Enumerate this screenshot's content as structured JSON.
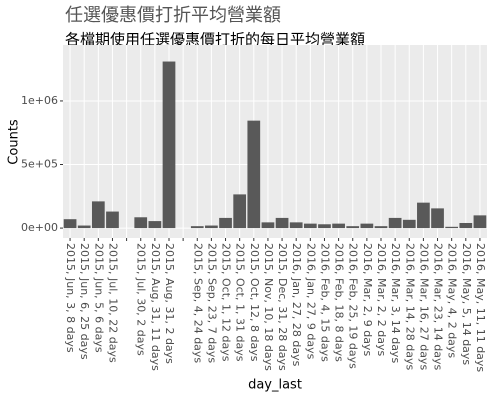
{
  "chart_data": {
    "type": "bar",
    "title": "任選優惠價打折平均營業額",
    "subtitle": "各檔期使用任選優惠價打折的每日平均營業額",
    "x_label": "day_last",
    "y_label": "Counts",
    "categories": [
      "2015, Jun, 3, 8 days",
      "2015, Jun, 6, 25 days",
      "2015, Jun, 5, 6 days",
      "2015, Jul, 10, 22 days",
      null,
      "2015, Jul, 30, 2 days",
      "2015, Aug, 31, 11 days",
      "2015, Aug, 31, 2 days",
      null,
      "2015, Sep, 4, 24 days",
      "2015, Sep, 23, 7 days",
      "2015, Oct, 1, 12 days",
      "2015, Oct, 1, 31 days",
      "2015, Oct, 12, 8 days",
      "2015, Nov, 10, 18 days",
      "2015, Dec, 31, 28 days",
      "2016, Jan, 27, 28 days",
      "2016, Jan, 27, 9 days",
      "2016, Feb, 4, 15 days",
      "2016, Feb, 18, 8 days",
      "2016, Feb, 25, 19 days",
      "2016, Mar, 2, 9 days",
      "2016, Mar, 2, 2 days",
      "2016, Mar, 3, 14 days",
      "2016, Mar, 14, 28 days",
      "2016, Mar, 16, 27 days",
      "2016, Mar, 23, 14 days",
      "2016, May, 4, 2 days",
      "2016, May, 5, 14 days",
      "2016, May, 11, 11 days"
    ],
    "values": [
      70000,
      20000,
      210000,
      130000,
      null,
      85000,
      55000,
      1310000,
      null,
      15000,
      20000,
      80000,
      265000,
      845000,
      45000,
      80000,
      45000,
      35000,
      30000,
      35000,
      15000,
      35000,
      15000,
      80000,
      65000,
      200000,
      155000,
      10000,
      40000,
      100000
    ],
    "color": "#595959",
    "ylim": [
      -78000,
      1440000
    ],
    "yticks": [
      {
        "value": 0,
        "label": "0e+00"
      },
      {
        "value": 500000,
        "label": "5e+05"
      },
      {
        "value": 1000000,
        "label": "1e+06"
      }
    ],
    "grid": true
  }
}
